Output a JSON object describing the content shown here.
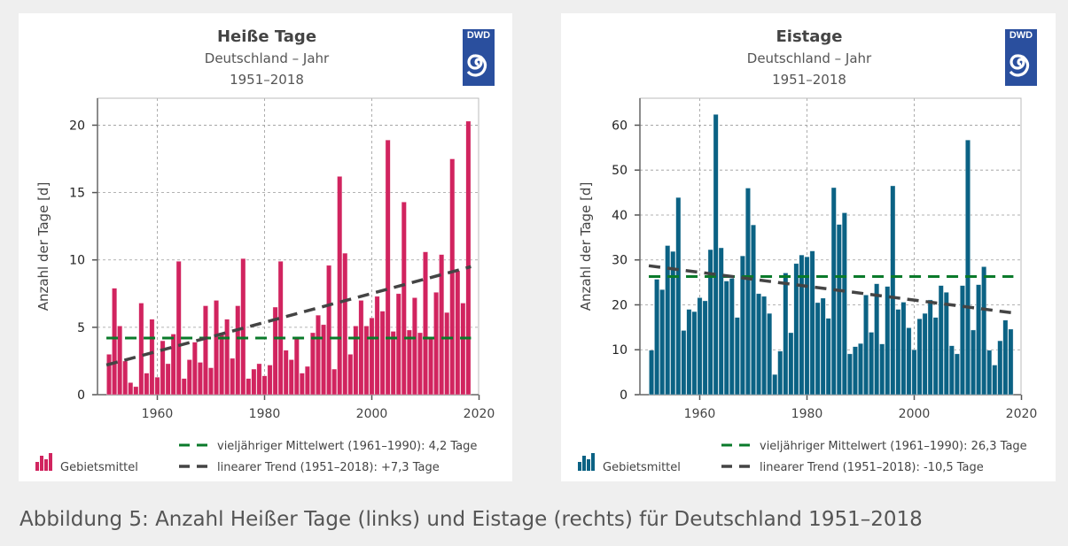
{
  "caption": "Abbildung 5: Anzahl Heißer Tage (links) und Eistage (rechts) für Deutschland 1951–2018",
  "logo_text": "DWD",
  "chart_data": [
    {
      "type": "bar",
      "title": "Heiße Tage",
      "subtitle": "Deutschland – Jahr",
      "period": "1951–2018",
      "ylabel": "Anzahl der Tage [d]",
      "xlabel": "",
      "color": "#d1245f",
      "xlim": [
        1949,
        2020
      ],
      "ylim": [
        0,
        22
      ],
      "xticks": [
        1960,
        1980,
        2000,
        2020
      ],
      "yticks": [
        0,
        5,
        10,
        15,
        20
      ],
      "grid": true,
      "x_start": 1951,
      "values": [
        3.0,
        7.9,
        5.1,
        2.5,
        0.9,
        0.6,
        6.8,
        1.6,
        5.6,
        1.3,
        4.0,
        2.3,
        4.5,
        9.9,
        1.2,
        2.6,
        3.9,
        2.4,
        6.6,
        2.0,
        7.0,
        4.6,
        5.6,
        2.7,
        6.6,
        10.1,
        1.2,
        1.9,
        2.3,
        1.4,
        2.2,
        6.5,
        9.9,
        3.3,
        2.6,
        4.3,
        1.6,
        2.1,
        4.6,
        5.9,
        5.2,
        9.6,
        1.9,
        16.2,
        10.5,
        3.0,
        5.1,
        7.0,
        5.1,
        5.7,
        7.3,
        6.2,
        18.9,
        4.7,
        7.5,
        14.3,
        4.8,
        7.2,
        4.6,
        10.6,
        4.3,
        7.6,
        10.4,
        6.1,
        17.5,
        9.2,
        6.8,
        20.3
      ],
      "mean": {
        "value": 4.2,
        "color": "#0a7a2a",
        "label": "vieljähriger Mittelwert (1961–1990): 4,2 Tage"
      },
      "trend": {
        "start": 2.2,
        "end": 9.5,
        "color": "#444444",
        "label": "linearer Trend (1951–2018): +7,3 Tage"
      },
      "bar_legend": "Gebietsmittel",
      "legend_position": "bottom"
    },
    {
      "type": "bar",
      "title": "Eistage",
      "subtitle": "Deutschland – Jahr",
      "period": "1951–2018",
      "ylabel": "Anzahl der Tage [d]",
      "xlabel": "",
      "color": "#0b6284",
      "xlim": [
        1949,
        2020
      ],
      "ylim": [
        0,
        66
      ],
      "xticks": [
        1960,
        1980,
        2000,
        2020
      ],
      "yticks": [
        0,
        10,
        20,
        30,
        40,
        50,
        60
      ],
      "grid": true,
      "x_start": 1951,
      "values": [
        9.9,
        25.7,
        23.4,
        33.2,
        31.9,
        43.9,
        14.3,
        19.0,
        18.5,
        21.6,
        20.9,
        32.3,
        62.4,
        32.7,
        25.3,
        25.9,
        17.2,
        30.9,
        46.0,
        37.8,
        22.5,
        21.9,
        18.1,
        4.5,
        9.7,
        27.1,
        13.8,
        29.2,
        31.1,
        30.7,
        32.0,
        20.5,
        21.5,
        17.0,
        46.1,
        37.9,
        40.5,
        9.1,
        10.7,
        11.4,
        22.2,
        13.9,
        24.7,
        11.3,
        24.1,
        46.5,
        19.0,
        20.6,
        14.9,
        10.0,
        16.9,
        18.1,
        21.1,
        17.2,
        24.3,
        22.8,
        10.9,
        9.1,
        24.3,
        56.7,
        14.4,
        24.5,
        28.5,
        9.9,
        6.6,
        12.0,
        16.6,
        14.6
      ],
      "mean": {
        "value": 26.3,
        "color": "#0a7a2a",
        "label": "vieljähriger Mittelwert (1961–1990): 26,3 Tage"
      },
      "trend": {
        "start": 28.7,
        "end": 18.2,
        "color": "#444444",
        "label": "linearer Trend (1951–2018): -10,5 Tage"
      },
      "bar_legend": "Gebietsmittel",
      "legend_position": "bottom"
    }
  ]
}
